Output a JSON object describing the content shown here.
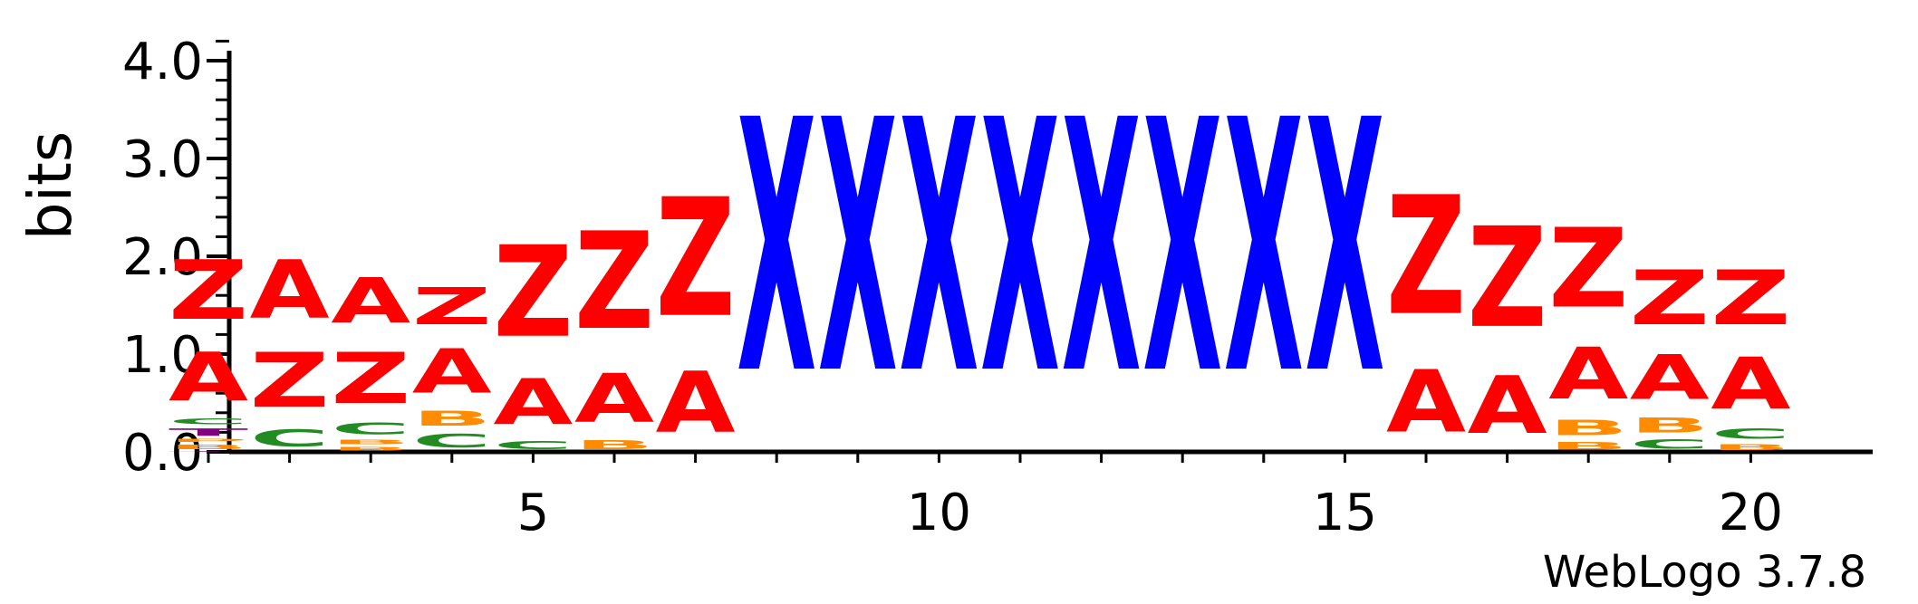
{
  "chart_data": {
    "type": "sequence-logo",
    "ylabel": "bits",
    "ylim": [
      0,
      4.2
    ],
    "yticks": [
      "0.0",
      "1.0",
      "2.0",
      "3.0",
      "4.0"
    ],
    "xticks": [
      "5",
      "10",
      "15",
      "20"
    ],
    "credit": "WebLogo 3.7.8",
    "colors": {
      "Z": "#ff0000",
      "A": "#ff0000",
      "X": "#0000ff",
      "C": "#228b22",
      "B": "#ff8c00",
      "T": "#800080"
    },
    "positions": [
      {
        "pos": 1,
        "stack": [
          [
            "T",
            0.01
          ],
          [
            "B",
            0.08
          ],
          [
            "P",
            0.05
          ],
          [
            "T",
            0.12
          ],
          [
            "C",
            0.1
          ],
          [
            "A",
            0.8
          ],
          [
            "Z",
            0.98
          ]
        ]
      },
      {
        "pos": 2,
        "stack": [
          [
            "C",
            0.28
          ],
          [
            "Z",
            0.9
          ],
          [
            "A",
            0.96
          ]
        ]
      },
      {
        "pos": 3,
        "stack": [
          [
            "B",
            0.06
          ],
          [
            "B",
            0.08
          ],
          [
            "C",
            0.19
          ],
          [
            "Z",
            0.84
          ],
          [
            "A",
            0.74
          ]
        ]
      },
      {
        "pos": 4,
        "stack": [
          [
            "C",
            0.22
          ],
          [
            "B",
            0.24
          ],
          [
            "A",
            0.72
          ],
          [
            "Z",
            0.61
          ]
        ]
      },
      {
        "pos": 5,
        "stack": [
          [
            "C",
            0.13
          ],
          [
            "A",
            0.75
          ],
          [
            "Z",
            1.5
          ]
        ]
      },
      {
        "pos": 6,
        "stack": [
          [
            "B",
            0.14
          ],
          [
            "A",
            0.8
          ],
          [
            "Z",
            1.6
          ]
        ]
      },
      {
        "pos": 7,
        "stack": [
          [
            "A",
            1.0
          ],
          [
            "Z",
            1.95
          ]
        ]
      },
      {
        "pos": 8,
        "stack": [
          [
            "X",
            4.15
          ]
        ]
      },
      {
        "pos": 9,
        "stack": [
          [
            "X",
            4.15
          ]
        ]
      },
      {
        "pos": 10,
        "stack": [
          [
            "X",
            4.15
          ]
        ]
      },
      {
        "pos": 11,
        "stack": [
          [
            "X",
            4.15
          ]
        ]
      },
      {
        "pos": 12,
        "stack": [
          [
            "X",
            4.15
          ]
        ]
      },
      {
        "pos": 13,
        "stack": [
          [
            "X",
            4.15
          ]
        ]
      },
      {
        "pos": 14,
        "stack": [
          [
            "X",
            4.15
          ]
        ]
      },
      {
        "pos": 15,
        "stack": [
          [
            "X",
            4.15
          ]
        ]
      },
      {
        "pos": 16,
        "stack": [
          [
            "A",
            1.02
          ],
          [
            "Z",
            1.95
          ]
        ]
      },
      {
        "pos": 17,
        "stack": [
          [
            "A",
            0.95
          ],
          [
            "Z",
            1.65
          ]
        ]
      },
      {
        "pos": 18,
        "stack": [
          [
            "B",
            0.12
          ],
          [
            "B",
            0.25
          ],
          [
            "A",
            0.85
          ],
          [
            "Z",
            1.3
          ]
        ]
      },
      {
        "pos": 19,
        "stack": [
          [
            "C",
            0.15
          ],
          [
            "B",
            0.24
          ],
          [
            "A",
            0.73
          ],
          [
            "Z",
            0.9
          ]
        ]
      },
      {
        "pos": 20,
        "stack": [
          [
            "B",
            0.1
          ],
          [
            "C",
            0.17
          ],
          [
            "A",
            0.85
          ],
          [
            "Z",
            0.9
          ]
        ]
      }
    ]
  }
}
